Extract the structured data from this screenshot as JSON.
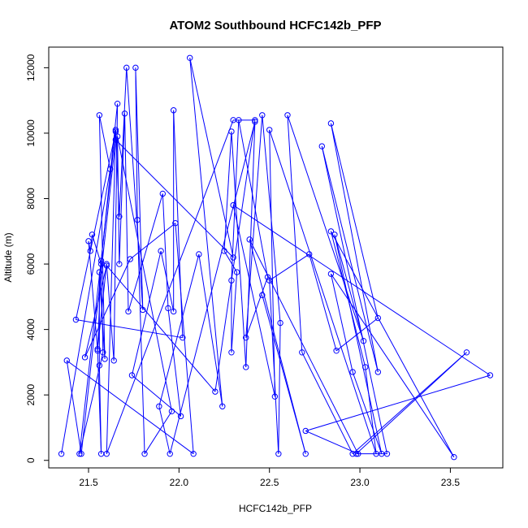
{
  "chart_data": {
    "type": "line",
    "title": "ATOM2 Southbound HCFC142b_PFP",
    "xlabel": "HCFC142b_PFP",
    "ylabel": "Altitude (m)",
    "xlim": [
      21.28,
      23.79
    ],
    "ylim": [
      -230,
      12630
    ],
    "xticks": [
      21.5,
      22.0,
      22.5,
      23.0,
      23.5
    ],
    "xtick_labels": [
      "21.5",
      "22.0",
      "22.5",
      "23.0",
      "23.5"
    ],
    "yticks": [
      0,
      2000,
      4000,
      6000,
      8000,
      10000,
      12000
    ],
    "ytick_labels": [
      "0",
      "2000",
      "4000",
      "6000",
      "8000",
      "10000",
      "12000"
    ],
    "series": [
      {
        "color": "#0000ff",
        "marker": "open-circle",
        "points": [
          [
            21.35,
            200
          ],
          [
            21.62,
            8900
          ],
          [
            21.56,
            10550
          ],
          [
            21.59,
            3100
          ],
          [
            21.56,
            5750
          ],
          [
            21.56,
            2900
          ],
          [
            21.57,
            200
          ],
          [
            21.55,
            3400
          ],
          [
            21.6,
            6000
          ],
          [
            21.64,
            3050
          ],
          [
            21.66,
            10900
          ],
          [
            21.57,
            6100
          ],
          [
            21.55,
            3350
          ],
          [
            21.5,
            6700
          ],
          [
            21.51,
            6400
          ],
          [
            21.52,
            6900
          ],
          [
            21.57,
            6000
          ],
          [
            21.58,
            3300
          ],
          [
            21.45,
            200
          ],
          [
            21.65,
            10100
          ],
          [
            21.67,
            7450
          ],
          [
            21.71,
            12000
          ],
          [
            21.8,
            4600
          ],
          [
            21.76,
            12000
          ],
          [
            21.77,
            7350
          ],
          [
            21.81,
            200
          ],
          [
            21.96,
            1500
          ],
          [
            21.66,
            9900
          ],
          [
            21.67,
            6000
          ],
          [
            21.7,
            10600
          ],
          [
            21.72,
            4550
          ],
          [
            21.91,
            8150
          ],
          [
            21.94,
            4650
          ],
          [
            22.01,
            1350
          ],
          [
            21.74,
            2600
          ],
          [
            21.9,
            6400
          ],
          [
            21.97,
            4550
          ],
          [
            21.97,
            10700
          ],
          [
            22.02,
            3750
          ],
          [
            21.43,
            4300
          ],
          [
            21.65,
            10050
          ],
          [
            21.6,
            200
          ],
          [
            22.3,
            10400
          ],
          [
            22.42,
            10400
          ],
          [
            22.2,
            2100
          ],
          [
            21.6,
            5950
          ],
          [
            21.48,
            3150
          ],
          [
            21.73,
            6150
          ],
          [
            21.98,
            7250
          ],
          [
            22.08,
            200
          ],
          [
            21.38,
            3050
          ],
          [
            21.46,
            200
          ],
          [
            21.65,
            9800
          ],
          [
            22.3,
            6200
          ],
          [
            22.06,
            12300
          ],
          [
            22.24,
            1650
          ],
          [
            22.11,
            6300
          ],
          [
            21.89,
            1650
          ],
          [
            21.95,
            200
          ],
          [
            22.42,
            10350
          ],
          [
            22.37,
            2850
          ],
          [
            22.29,
            10050
          ],
          [
            22.25,
            6400
          ],
          [
            22.32,
            5750
          ],
          [
            22.29,
            3300
          ],
          [
            22.29,
            5500
          ],
          [
            22.33,
            10400
          ],
          [
            22.49,
            5600
          ],
          [
            22.37,
            3750
          ],
          [
            22.46,
            10550
          ],
          [
            22.56,
            4200
          ],
          [
            22.55,
            200
          ],
          [
            22.5,
            5500
          ],
          [
            22.72,
            6300
          ],
          [
            22.87,
            3350
          ],
          [
            23.1,
            4350
          ],
          [
            22.84,
            10300
          ],
          [
            23.1,
            2700
          ],
          [
            22.79,
            9600
          ],
          [
            23.15,
            200
          ],
          [
            22.98,
            200
          ],
          [
            23.59,
            3300
          ],
          [
            22.96,
            200
          ],
          [
            22.68,
            3300
          ],
          [
            22.6,
            10550
          ],
          [
            23.02,
            3650
          ],
          [
            22.86,
            6900
          ],
          [
            23.12,
            200
          ],
          [
            22.96,
            2700
          ],
          [
            22.84,
            5700
          ],
          [
            23.52,
            100
          ],
          [
            22.84,
            7000
          ],
          [
            23.03,
            2850
          ],
          [
            23.09,
            200
          ],
          [
            22.5,
            10100
          ],
          [
            22.53,
            1950
          ],
          [
            22.3,
            7800
          ],
          [
            23.72,
            2600
          ],
          [
            22.7,
            900
          ],
          [
            22.99,
            200
          ],
          [
            22.39,
            6750
          ],
          [
            22.7,
            200
          ],
          [
            22.46,
            5050
          ]
        ]
      }
    ]
  }
}
